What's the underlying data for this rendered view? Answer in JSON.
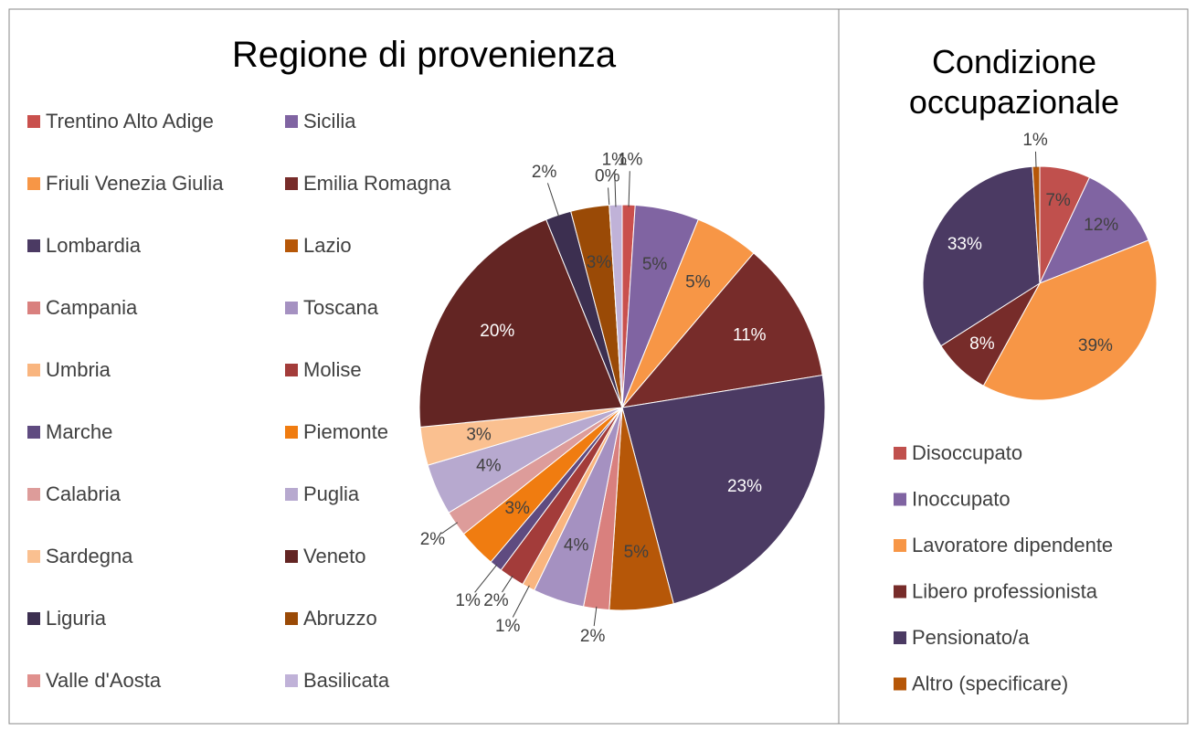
{
  "chart_data": [
    {
      "type": "pie",
      "title": "Regione di provenienza",
      "categories": [
        "Trentino Alto Adige",
        "Sicilia",
        "Friuli Venezia Giulia",
        "Emilia Romagna",
        "Lombardia",
        "Lazio",
        "Campania",
        "Toscana",
        "Umbria",
        "Molise",
        "Marche",
        "Piemonte",
        "Calabria",
        "Puglia",
        "Sardegna",
        "Veneto",
        "Liguria",
        "Abruzzo",
        "Valle d'Aosta",
        "Basilicata"
      ],
      "values": [
        1,
        5,
        5,
        11,
        23,
        5,
        2,
        4,
        1,
        2,
        1,
        3,
        2,
        4,
        3,
        20,
        2,
        3,
        0,
        1
      ],
      "value_labels": [
        "1%",
        "5%",
        "5%",
        "11%",
        "23%",
        "5%",
        "2%",
        "4%",
        "1%",
        "2%",
        "1%",
        "3%",
        "2%",
        "4%",
        "3%",
        "20%",
        "2%",
        "3%",
        "0%",
        "1%"
      ],
      "colors": [
        "#c9504d",
        "#8064a2",
        "#f79646",
        "#772c2a",
        "#4b3a63",
        "#b65708",
        "#d9807e",
        "#a591c1",
        "#f9b57f",
        "#a33c3a",
        "#5f4b80",
        "#f07c10",
        "#dd9c9a",
        "#b7a9cf",
        "#fac090",
        "#632523",
        "#3c2f50",
        "#9a4a06",
        "#e0908d",
        "#c0b2d8"
      ]
    },
    {
      "type": "pie",
      "title": "Condizione occupazionale",
      "categories": [
        "Disoccupato",
        "Inoccupato",
        "Lavoratore dipendente",
        "Libero professionista",
        "Pensionato/a",
        "Altro (specificare)"
      ],
      "values": [
        7,
        12,
        39,
        8,
        33,
        1
      ],
      "value_labels": [
        "7%",
        "12%",
        "39%",
        "8%",
        "33%",
        "1%"
      ],
      "colors": [
        "#c0504d",
        "#8064a2",
        "#f79646",
        "#772c2a",
        "#4b3a63",
        "#b65708"
      ]
    }
  ]
}
